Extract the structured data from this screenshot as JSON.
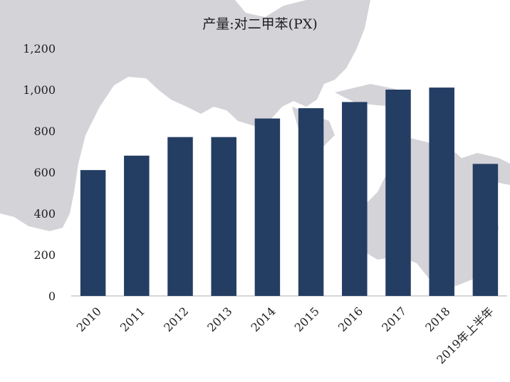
{
  "chart_data": {
    "type": "bar",
    "title": "产量:对二甲苯(PX)",
    "categories": [
      "2010",
      "2011",
      "2012",
      "2013",
      "2014",
      "2015",
      "2016",
      "2017",
      "2018",
      "2019年上半年"
    ],
    "values": [
      610,
      680,
      770,
      770,
      860,
      910,
      940,
      1000,
      1010,
      640
    ],
    "ylim": [
      0,
      1200
    ],
    "yticks": [
      0,
      200,
      400,
      600,
      800,
      1000,
      1200
    ],
    "ytick_labels": [
      "0",
      "200",
      "400",
      "600",
      "800",
      "1,000",
      "1,200"
    ],
    "xlabel": "",
    "ylabel": "",
    "grid": false,
    "legend": "none",
    "colors": {
      "bar": "#243d63",
      "background_map": "#d3d3d8"
    }
  }
}
